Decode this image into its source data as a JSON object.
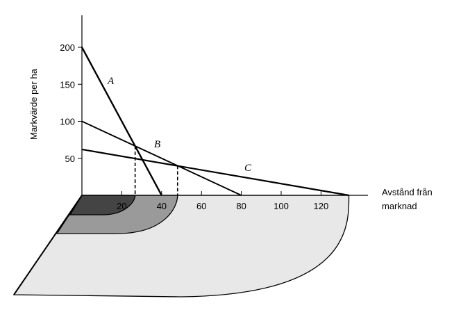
{
  "chart_data": {
    "type": "line",
    "title": "",
    "ylabel": "Markvärde per ha",
    "xlabel_lines": [
      "Avstånd   från",
      "marknad"
    ],
    "xlim": [
      0,
      132
    ],
    "ylim": [
      0,
      240
    ],
    "x_ticks": [
      20,
      40,
      60,
      80,
      100,
      120
    ],
    "y_ticks": [
      50,
      100,
      150,
      200
    ],
    "series": [
      {
        "name": "A",
        "points": [
          [
            0,
            200
          ],
          [
            40,
            0
          ]
        ]
      },
      {
        "name": "B",
        "points": [
          [
            0,
            100
          ],
          [
            80,
            0
          ]
        ]
      },
      {
        "name": "C",
        "points": [
          [
            0,
            62
          ],
          [
            134,
            0
          ]
        ]
      }
    ],
    "intersections": [
      {
        "x": 26.7,
        "y": 66.7
      },
      {
        "x": 48.0,
        "y": 40.0
      }
    ],
    "zones": [
      {
        "name": "zone-A",
        "outer_x": 26.7,
        "color": "#444444"
      },
      {
        "name": "zone-B",
        "outer_x": 48.0,
        "color": "#9a9a9a"
      },
      {
        "name": "zone-C",
        "outer_x": 134,
        "color": "#e8e8e8"
      }
    ]
  }
}
